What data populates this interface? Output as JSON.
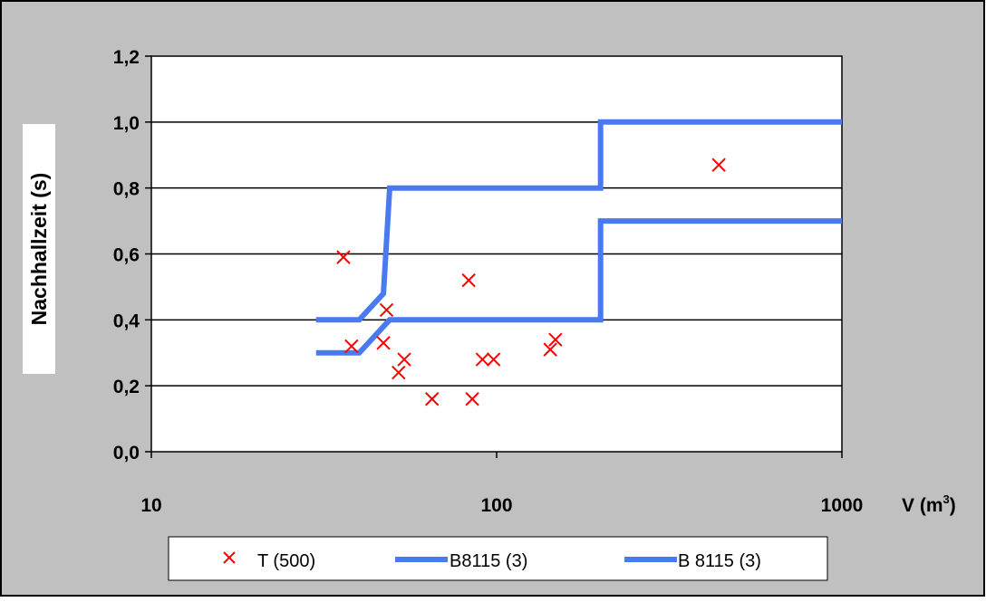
{
  "chart_data": {
    "type": "scatter",
    "title": "",
    "xlabel": "V (m",
    "xlabel_sup": "3",
    "xlabel_close": ")",
    "ylabel": "Nachhallzeit (s)",
    "x_scale": "log",
    "xlim": [
      10,
      1000
    ],
    "ylim": [
      0.0,
      1.2
    ],
    "x_ticks": [
      10,
      100,
      1000
    ],
    "x_tick_labels": [
      "10",
      "100",
      "1000"
    ],
    "y_ticks": [
      0.0,
      0.2,
      0.4,
      0.6,
      0.8,
      1.0,
      1.2
    ],
    "y_tick_labels": [
      "0,0",
      "0,2",
      "0,4",
      "0,6",
      "0,8",
      "1,0",
      "1,2"
    ],
    "grid": "horizontal",
    "legend_position": "bottom",
    "colors": {
      "background": "#c0c0c0",
      "plot_area": "#ffffff",
      "marker": "#ff0000",
      "line": "#4a7af2",
      "grid": "#000000"
    },
    "series": [
      {
        "name": "T (500)",
        "kind": "scatter",
        "marker": "x",
        "points": [
          [
            36,
            0.59
          ],
          [
            38,
            0.32
          ],
          [
            47,
            0.33
          ],
          [
            48,
            0.43
          ],
          [
            52,
            0.24
          ],
          [
            54,
            0.28
          ],
          [
            65,
            0.16
          ],
          [
            83,
            0.52
          ],
          [
            85,
            0.16
          ],
          [
            91,
            0.28
          ],
          [
            98,
            0.28
          ],
          [
            143,
            0.31
          ],
          [
            148,
            0.34
          ],
          [
            440,
            0.87
          ]
        ]
      },
      {
        "name": "B8115 (3)",
        "kind": "line",
        "points": [
          [
            30,
            0.4
          ],
          [
            40,
            0.4
          ],
          [
            47,
            0.48
          ],
          [
            49,
            0.8
          ],
          [
            200,
            0.8
          ],
          [
            200,
            1.0
          ],
          [
            1000,
            1.0
          ]
        ]
      },
      {
        "name": "B 8115 (3)",
        "kind": "line",
        "points": [
          [
            30,
            0.3
          ],
          [
            40,
            0.3
          ],
          [
            49,
            0.4
          ],
          [
            200,
            0.4
          ],
          [
            200,
            0.7
          ],
          [
            1000,
            0.7
          ]
        ]
      }
    ]
  }
}
